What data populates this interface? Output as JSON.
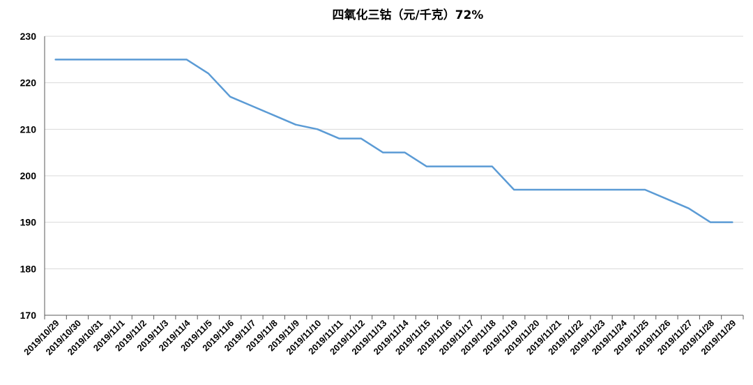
{
  "chart_data": {
    "type": "line",
    "title": "四氧化三钴（元/千克）72%",
    "xlabel": "",
    "ylabel": "",
    "ylim": [
      170,
      230
    ],
    "yticks": [
      170,
      180,
      190,
      200,
      210,
      220,
      230
    ],
    "grid": true,
    "legend": "none",
    "categories": [
      "2019/10/29",
      "2019/10/30",
      "2019/10/31",
      "2019/11/1",
      "2019/11/2",
      "2019/11/3",
      "2019/11/4",
      "2019/11/5",
      "2019/11/6",
      "2019/11/7",
      "2019/11/8",
      "2019/11/9",
      "2019/11/10",
      "2019/11/11",
      "2019/11/12",
      "2019/11/13",
      "2019/11/14",
      "2019/11/15",
      "2019/11/16",
      "2019/11/17",
      "2019/11/18",
      "2019/11/19",
      "2019/11/20",
      "2019/11/21",
      "2019/11/22",
      "2019/11/23",
      "2019/11/24",
      "2019/11/25",
      "2019/11/26",
      "2019/11/27",
      "2019/11/28",
      "2019/11/29"
    ],
    "series": [
      {
        "color": "#5b9bd5",
        "values": [
          225,
          225,
          225,
          225,
          225,
          225,
          225,
          222,
          217,
          215,
          213,
          211,
          210,
          208,
          208,
          205,
          205,
          202,
          202,
          202,
          202,
          197,
          197,
          197,
          197,
          197,
          197,
          197,
          195,
          193,
          190,
          190
        ]
      }
    ]
  }
}
